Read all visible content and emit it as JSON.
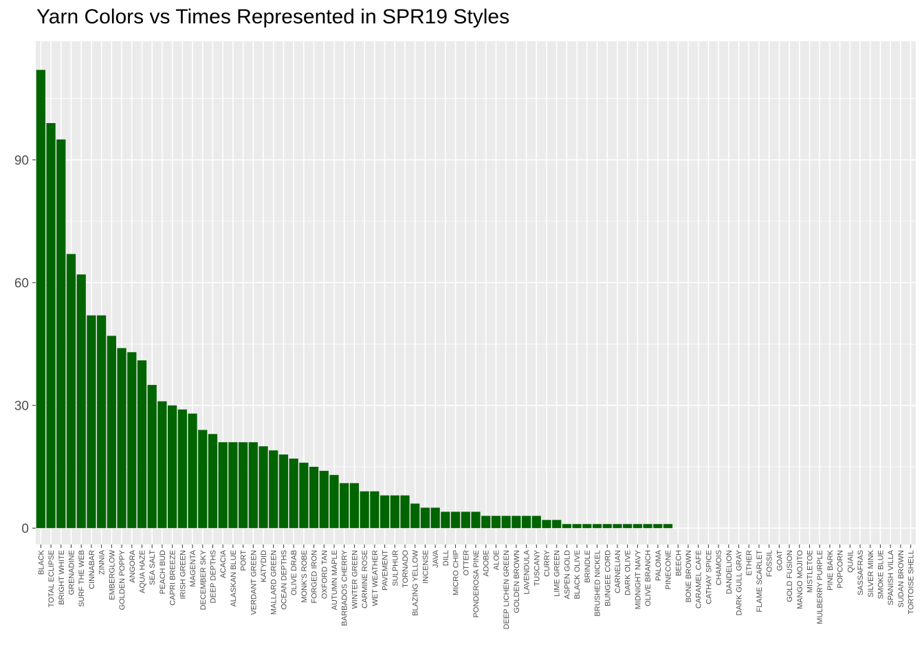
{
  "chart_data": {
    "type": "bar",
    "title": "Yarn Colors vs Times Represented in SPR19 Styles",
    "xlabel": "",
    "ylabel": "",
    "ylim": [
      -4,
      119
    ],
    "yticks": [
      0,
      30,
      60,
      90
    ],
    "grid": true,
    "legend": "none",
    "colors": {
      "bar": "#006400",
      "panel": "#ebebeb",
      "grid_major": "#ffffff",
      "tick_text": "#4d4d4d"
    },
    "categories": [
      "BLACK",
      "TOTAL ECLIPSE",
      "BRIGHT WHITE",
      "GRENADINE",
      "SURF THE WEB",
      "CINNABAR",
      "ZINNIA",
      "EMBERGLOW",
      "GOLDEN POPPY",
      "ANGORA",
      "AQUA HAZE",
      "SEA SALT",
      "PEACH BUD",
      "CAPRI BREEZE",
      "IRISH GREEN",
      "MAGENTA",
      "DECEMBER SKY",
      "DEEP DEPTHS",
      "ACACIA",
      "ALASKAN BLUE",
      "PORT",
      "VERDANT GREEN",
      "KATYDID",
      "MALLARD GREEN",
      "OCEAN DEPTHS",
      "OLIVE DRAB",
      "MONK'S ROBE",
      "FORGED IRON",
      "OXFORD TAN",
      "AUTUMN MAPLE",
      "BARBADOS CHERRY",
      "WINTER GREEN",
      "CARMINE ROSE",
      "WET WEATHER",
      "PAVEMENT",
      "SULPHUR",
      "TORNADO",
      "BLAZING YELLOW",
      "INCENSE",
      "JAVA",
      "DILL",
      "MICRO CHIP",
      "OTTER",
      "PONDEROSA PINE",
      "ADOBE",
      "ALOE",
      "DEEP LICHEN GREEN",
      "GOLDEN BROWN",
      "LAVENDULA",
      "TUSCANY",
      "CURRY",
      "LIME GREEN",
      "ASPEN GOLD",
      "BLACK OLIVE",
      "BRINDLE",
      "BRUSHED NICKEL",
      "BUNGEE CORD",
      "CARNELIAN",
      "DARK OLIVE",
      "MIDNIGHT NAVY",
      "OLIVE BRANCH",
      "PALOMA",
      "PINECONE",
      "BEECH",
      "BONE BROWN",
      "CARAMEL CAFE",
      "CATHAY SPICE",
      "CHAMOIS",
      "DANDELION",
      "DARK GULL GRAY",
      "ETHER",
      "FLAME SCARLET",
      "FOSSIL",
      "GOAT",
      "GOLD FUSION",
      "MANGO MOJITO",
      "MISTLETOE",
      "MULBERRY PURPLE",
      "PINE BARK",
      "POPCORN",
      "QUAIL",
      "SASSAFRAS",
      "SILVER MINK",
      "SMOKE BLUE",
      "SPANISH VILLA",
      "SUDAN BROWN",
      "TORTOISE SHELL"
    ],
    "values": [
      112,
      99,
      95,
      67,
      62,
      52,
      52,
      47,
      44,
      43,
      41,
      35,
      31,
      30,
      29,
      28,
      24,
      23,
      21,
      21,
      21,
      21,
      20,
      19,
      18,
      17,
      16,
      15,
      14,
      13,
      11,
      11,
      9,
      9,
      8,
      8,
      8,
      6,
      5,
      5,
      4,
      4,
      4,
      4,
      3,
      3,
      3,
      3,
      3,
      3,
      2,
      2,
      1,
      1,
      1,
      1,
      1,
      1,
      1,
      1,
      1,
      1,
      1,
      0,
      0,
      0,
      0,
      0,
      0,
      0,
      0,
      0,
      0,
      0,
      0,
      0,
      0,
      0,
      0,
      0,
      0,
      0,
      0,
      0,
      0,
      0,
      0
    ]
  }
}
